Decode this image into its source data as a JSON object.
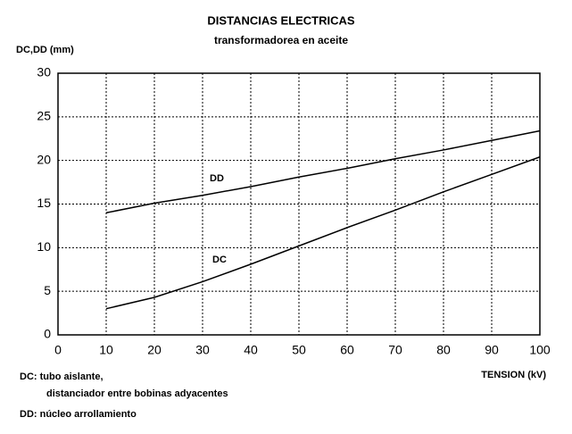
{
  "chart_data": {
    "type": "line",
    "title": "DISTANCIAS ELECTRICAS",
    "subtitle": "transformadorea en aceite",
    "y_label": "DC,DD (mm)",
    "x_label": "TENSION (kV)",
    "x": [
      10,
      20,
      30,
      40,
      50,
      60,
      70,
      80,
      90,
      100
    ],
    "series": [
      {
        "name": "DD",
        "color": "#000000",
        "values": [
          14,
          15.1,
          16,
          17,
          18.1,
          19.1,
          20.2,
          21.2,
          22.3,
          23.4
        ]
      },
      {
        "name": "DC",
        "color": "#000000",
        "values": [
          3,
          4.3,
          6.1,
          8.1,
          10.2,
          12.3,
          14.3,
          16.4,
          18.4,
          20.4
        ]
      }
    ],
    "xlim": [
      0,
      100
    ],
    "xticks": [
      0,
      10,
      20,
      30,
      40,
      50,
      60,
      70,
      80,
      90,
      100
    ],
    "ylim": [
      0,
      30
    ],
    "yticks": [
      0,
      5,
      10,
      15,
      20,
      25,
      30
    ],
    "grid": true,
    "notes": [
      "DC: tubo aislante,",
      "distanciador entre bobinas adyacentes",
      "DD: núcleo arrollamiento"
    ]
  }
}
